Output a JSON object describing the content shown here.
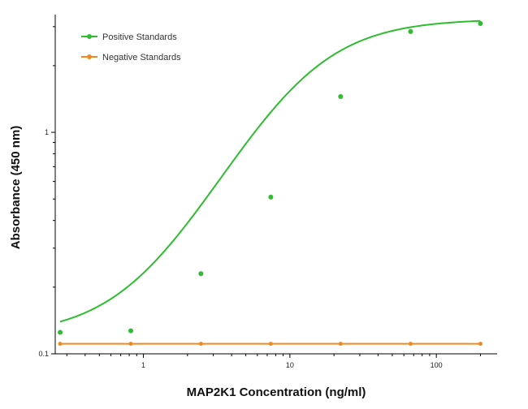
{
  "chart_data": {
    "type": "scatter",
    "xlabel": "MAP2K1 Concentration (ng/ml)",
    "ylabel": "Absorbance (450 nm)",
    "x_scale": "log",
    "y_scale": "log",
    "xlim": [
      0.25,
      260
    ],
    "ylim": [
      0.1,
      3.4
    ],
    "x_ticks": [
      1,
      10,
      100
    ],
    "x_tick_labels": [
      "1",
      "10",
      "100"
    ],
    "y_ticks": [
      0.1,
      1
    ],
    "y_tick_labels": [
      "0.1",
      "1"
    ],
    "grid": false,
    "legend_position": "top-left",
    "series": [
      {
        "name": "Positive Standards",
        "color": "#2ebd2e",
        "x": [
          0.27,
          0.82,
          2.47,
          7.41,
          22.2,
          66.7,
          200
        ],
        "y": [
          0.125,
          0.127,
          0.23,
          0.51,
          1.45,
          2.85,
          3.1
        ],
        "fit": "sigmoidal curve"
      },
      {
        "name": "Negative Standards",
        "color": "#f08a1c",
        "x": [
          0.27,
          0.82,
          2.47,
          7.41,
          22.2,
          66.7,
          200
        ],
        "y": [
          0.111,
          0.111,
          0.111,
          0.111,
          0.111,
          0.111,
          0.111
        ],
        "fit": "flat line"
      }
    ]
  }
}
